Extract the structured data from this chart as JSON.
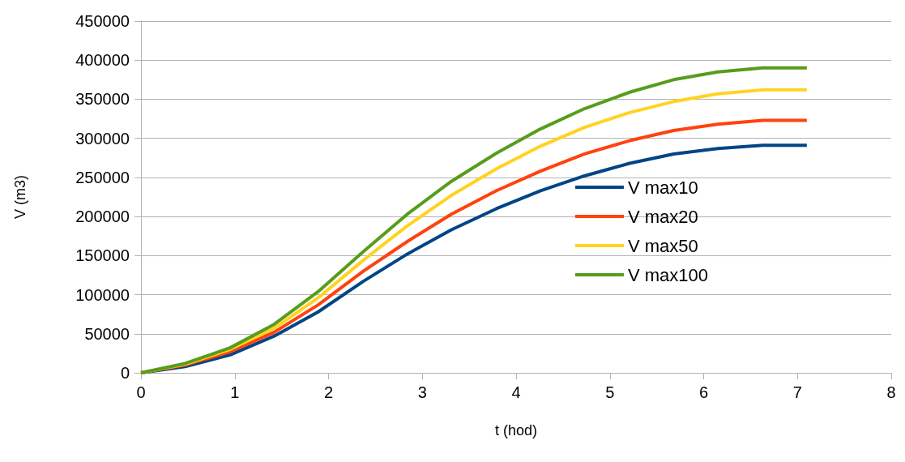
{
  "chart_data": {
    "type": "line",
    "xlabel": "t (hod)",
    "ylabel": "V (m3)",
    "x": [
      0,
      0.47,
      0.95,
      1.42,
      1.89,
      2.37,
      2.84,
      3.31,
      3.79,
      4.26,
      4.73,
      5.21,
      5.68,
      6.15,
      6.63,
      7.1
    ],
    "series": [
      {
        "name": "V max10",
        "color": "#004586",
        "values": [
          0,
          8000,
          23000,
          47000,
          78000,
          117000,
          152000,
          183000,
          210000,
          233000,
          252000,
          268000,
          280000,
          287000,
          291000,
          291000
        ]
      },
      {
        "name": "V max20",
        "color": "#ff420e",
        "values": [
          0,
          10000,
          27000,
          52000,
          87000,
          130000,
          168000,
          203000,
          233000,
          258000,
          280000,
          297000,
          310000,
          318000,
          323000,
          323000
        ]
      },
      {
        "name": "V max50",
        "color": "#ffd320",
        "values": [
          0,
          11000,
          30000,
          57000,
          96000,
          144000,
          188000,
          227000,
          261000,
          290000,
          314000,
          333000,
          347000,
          357000,
          362000,
          362000
        ]
      },
      {
        "name": "V max100",
        "color": "#579d1c",
        "values": [
          0,
          12000,
          32000,
          62000,
          104000,
          155000,
          203000,
          245000,
          281000,
          312000,
          338000,
          359000,
          375000,
          385000,
          390000,
          390000
        ]
      }
    ],
    "xlim": [
      0,
      8
    ],
    "xticks": [
      0,
      1,
      2,
      3,
      4,
      5,
      6,
      7,
      8
    ],
    "ylim": [
      0,
      450000
    ],
    "yticks": [
      0,
      50000,
      100000,
      150000,
      200000,
      250000,
      300000,
      350000,
      400000,
      450000
    ],
    "grid": "y",
    "legend": "right",
    "marker": "none",
    "line_style": "solid"
  }
}
